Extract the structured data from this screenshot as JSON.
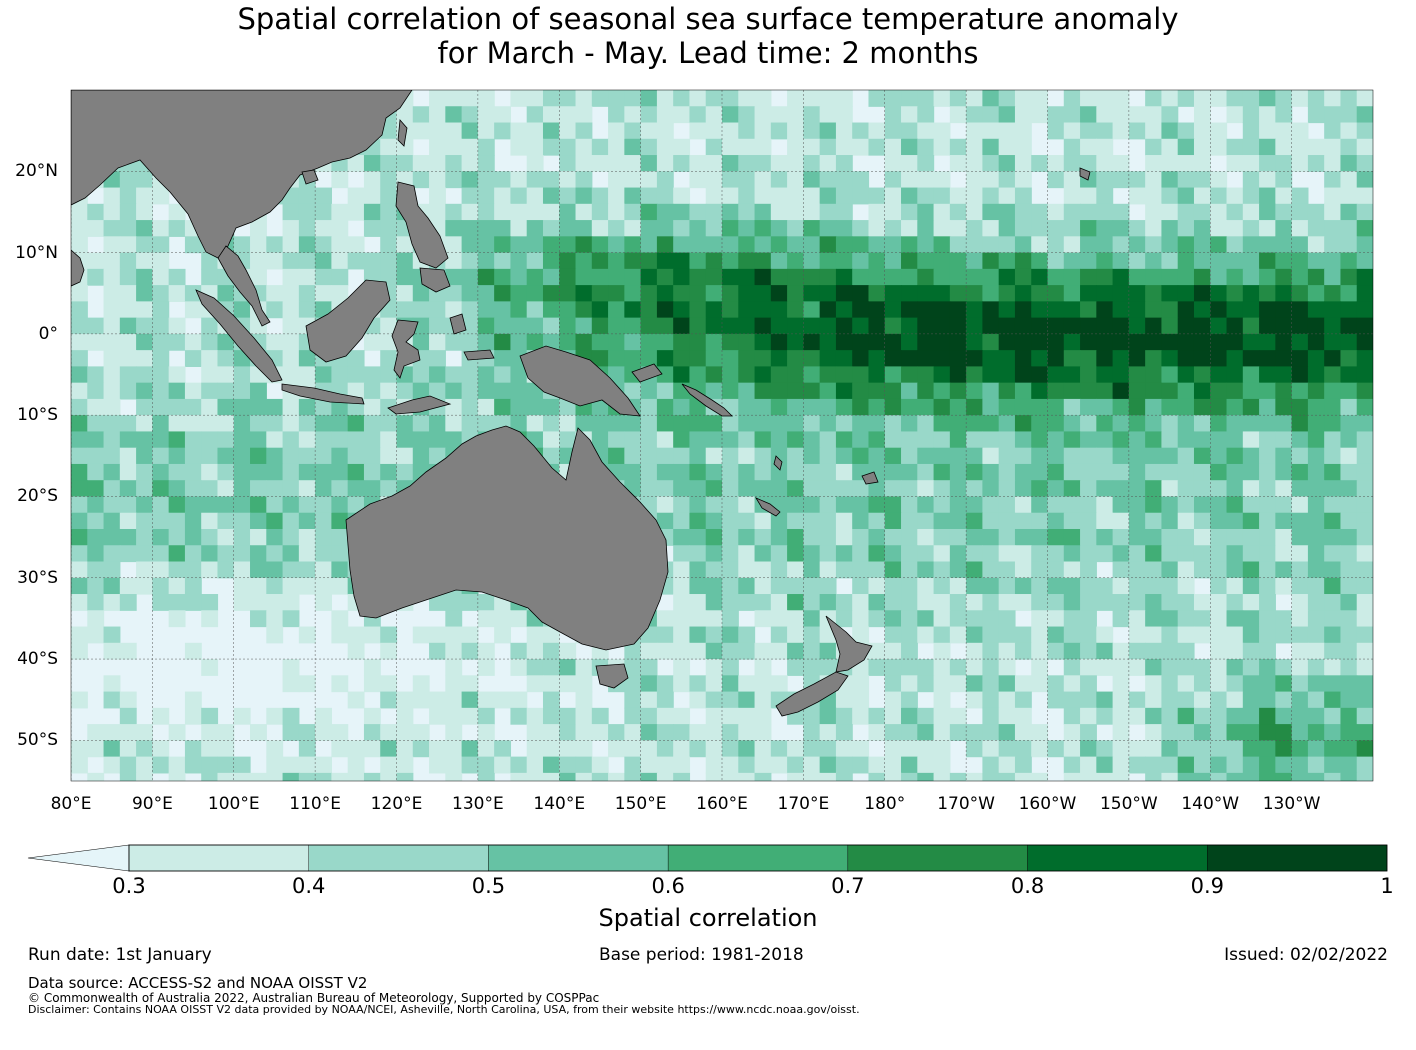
{
  "title_line1": "Spatial correlation of seasonal sea surface temperature anomaly",
  "title_line2": "for March - May. Lead time: 2 months",
  "map": {
    "land_color": "#808080",
    "ocean_base_color": "#e6f4f9",
    "lat_labels": [
      "20°N",
      "10°N",
      "0°",
      "10°S",
      "20°S",
      "30°S",
      "40°S",
      "50°S"
    ],
    "lat_values": [
      20,
      10,
      0,
      -10,
      -20,
      -30,
      -40,
      -50
    ],
    "lon_labels": [
      "80°E",
      "90°E",
      "100°E",
      "110°E",
      "120°E",
      "130°E",
      "140°E",
      "150°E",
      "160°E",
      "170°E",
      "180°",
      "170°W",
      "160°W",
      "150°W",
      "140°W",
      "130°W"
    ],
    "lon_values": [
      80,
      90,
      100,
      110,
      120,
      130,
      140,
      150,
      160,
      170,
      180,
      190,
      200,
      210,
      220,
      230
    ],
    "lat_range": [
      -55,
      30
    ],
    "lon_range": [
      80,
      240
    ]
  },
  "colorbar": {
    "ticks": [
      "0.3",
      "0.4",
      "0.5",
      "0.6",
      "0.7",
      "0.8",
      "0.9",
      "1"
    ],
    "tick_values": [
      0.3,
      0.4,
      0.5,
      0.6,
      0.7,
      0.8,
      0.9,
      1.0
    ],
    "colors": [
      "#ccece6",
      "#99d8c9",
      "#66c2a4",
      "#41ae76",
      "#238b45",
      "#006d2c",
      "#00441b"
    ],
    "under_color": "#e5f5f9",
    "label": "Spatial correlation"
  },
  "footer": {
    "run_date": "Run date: 1st January",
    "base_period": "Base period: 1981-2018",
    "issued": "Issued: 02/02/2022",
    "data_source": "Data source: ACCESS-S2 and NOAA OISST V2",
    "copyright": "© Commonwealth of Australia 2022, Australian Bureau of Meteorology, Supported by COSPPac",
    "disclaimer": "Disclaimer: Contains NOAA OISST V2 data provided by NOAA/NCEI, Asheville, North Carolina, USA, from their website https://www.ncdc.noaa.gov/oisst."
  }
}
